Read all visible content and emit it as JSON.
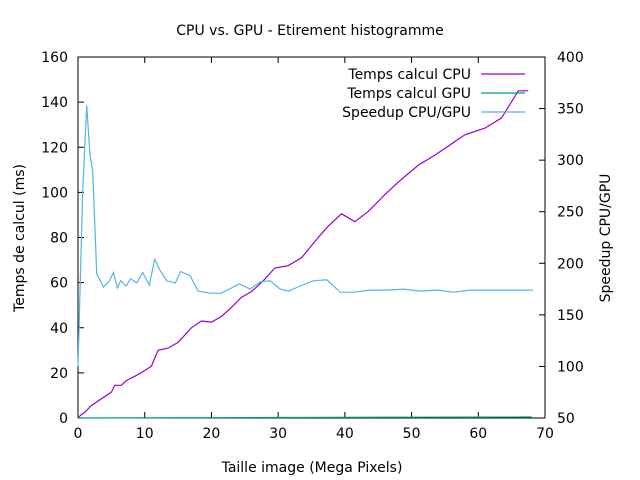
{
  "chart_data": {
    "type": "line",
    "title": "CPU vs. GPU - Etirement histogramme",
    "xlabel": "Taille image (Mega Pixels)",
    "ylabel": "Temps de calcul (ms)",
    "y2label": "Speedup CPU/GPU",
    "xlim": [
      0,
      70
    ],
    "ylim": [
      0,
      160
    ],
    "y2lim": [
      50,
      400
    ],
    "xticks": [
      0,
      10,
      20,
      30,
      40,
      50,
      60,
      70
    ],
    "yticks": [
      0,
      20,
      40,
      60,
      80,
      100,
      120,
      140,
      160
    ],
    "y2ticks": [
      50,
      100,
      150,
      200,
      250,
      300,
      350,
      400
    ],
    "grid": false,
    "legend_position": "top-right",
    "series": [
      {
        "name": "Temps calcul CPU",
        "axis": "left",
        "color": "#9400d3",
        "x": [
          0,
          0.5,
          1,
          1.5,
          2,
          3,
          4,
          5,
          5.5,
          6.5,
          7,
          7.5,
          8.5,
          10,
          11,
          12,
          13.5,
          15,
          17,
          18.5,
          20,
          21.5,
          23,
          24.5,
          26,
          28,
          29.5,
          31.5,
          33.5,
          36,
          37.5,
          39.5,
          41.5,
          43.5,
          46,
          48,
          51,
          53.5,
          55.5,
          58,
          61,
          63.5,
          66,
          67.5
        ],
        "values": [
          0,
          1.5,
          2.5,
          4,
          5.5,
          7.5,
          9.5,
          11.5,
          14.5,
          14.5,
          16,
          17,
          18.5,
          21,
          23,
          30,
          31,
          33.5,
          40,
          43,
          42.5,
          45,
          49,
          53.5,
          56,
          61.5,
          66.5,
          67.5,
          71,
          80,
          85,
          90.5,
          87,
          91.5,
          99,
          104.5,
          112,
          116.5,
          120.5,
          125.5,
          128.5,
          133,
          145,
          145
        ]
      },
      {
        "name": "Temps calcul GPU",
        "axis": "left",
        "color": "#009e73",
        "x": [
          0,
          10,
          20,
          30,
          40,
          50,
          60,
          68
        ],
        "values": [
          0,
          0.1,
          0.15,
          0.2,
          0.3,
          0.35,
          0.4,
          0.45
        ]
      },
      {
        "name": "Speedup CPU/GPU",
        "axis": "right",
        "color": "#56b4e9",
        "x": [
          0,
          0.7,
          1.3,
          1.8,
          2.2,
          2.8,
          3.8,
          4.6,
          5.3,
          5.9,
          6.4,
          7.2,
          7.9,
          8.8,
          9.7,
          10.7,
          11.5,
          12.3,
          13.3,
          14.6,
          15.4,
          16.8,
          18,
          19.8,
          21.5,
          23,
          24.2,
          25.8,
          27.3,
          28.8,
          30.3,
          31.6,
          33.3,
          35.3,
          37.3,
          39.3,
          41.3,
          43.8,
          46.3,
          48.8,
          51.3,
          53.8,
          56.3,
          58.8,
          61.3,
          63.8,
          66.3,
          68.2
        ],
        "values": [
          100,
          270,
          353,
          305,
          290,
          190,
          177,
          182,
          191,
          176,
          183,
          178,
          185,
          181,
          191,
          179,
          204,
          193,
          183,
          181,
          192,
          188,
          173,
          171,
          171,
          176,
          180,
          175,
          182,
          183,
          175,
          173,
          178,
          183,
          184,
          172,
          172,
          174,
          174,
          175,
          173,
          174,
          172,
          174,
          174,
          174,
          174,
          174
        ]
      }
    ]
  }
}
